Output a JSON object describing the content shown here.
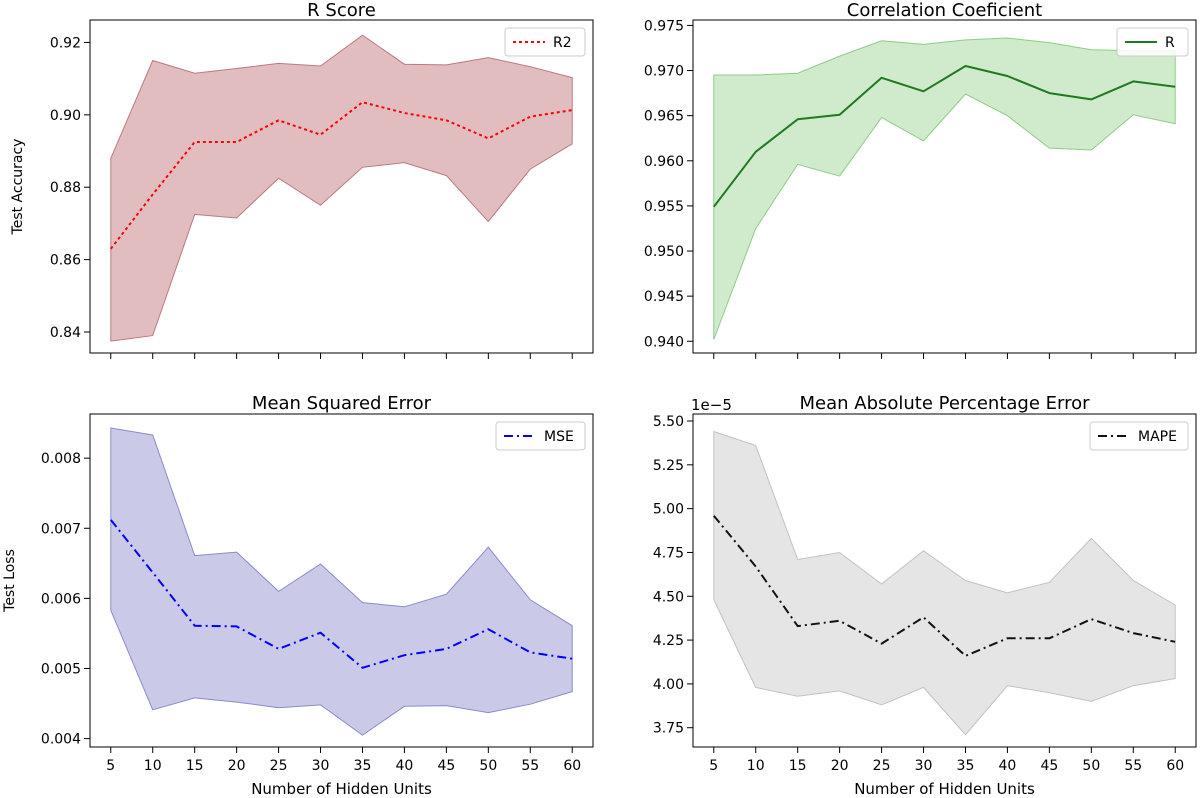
{
  "chart_data": [
    {
      "type": "line",
      "title": "R Score",
      "xlabel": "",
      "ylabel": "Test Accuracy",
      "x": [
        5,
        10,
        15,
        20,
        25,
        30,
        35,
        40,
        45,
        50,
        55,
        60
      ],
      "xticks": [
        "5",
        "10",
        "15",
        "20",
        "25",
        "30",
        "35",
        "40",
        "45",
        "50",
        "55",
        "60"
      ],
      "show_xtick_labels": false,
      "ylim": [
        0.8342,
        0.9262
      ],
      "yticks": [
        "0.84",
        "0.86",
        "0.88",
        "0.90",
        "0.92"
      ],
      "exponent_label": "",
      "legend_position": "top-right",
      "series": [
        {
          "name": "R2",
          "line_color": "#ff0000",
          "line_style": "dotted",
          "band_fill": "#c9868a",
          "band_stroke": "#b87b80",
          "values": [
            0.863,
            0.878,
            0.8925,
            0.8925,
            0.8985,
            0.8945,
            0.9035,
            0.9005,
            0.8985,
            0.8935,
            0.8995,
            0.9013
          ],
          "upper": [
            0.888,
            0.915,
            0.9115,
            0.9128,
            0.9142,
            0.9135,
            0.922,
            0.914,
            0.9138,
            0.9158,
            0.9133,
            0.9103
          ],
          "lower": [
            0.8375,
            0.839,
            0.8725,
            0.8715,
            0.8825,
            0.875,
            0.8855,
            0.8868,
            0.8832,
            0.8705,
            0.885,
            0.892
          ]
        }
      ]
    },
    {
      "type": "line",
      "title": "Correlation Coeficient",
      "xlabel": "",
      "ylabel": "",
      "x": [
        5,
        10,
        15,
        20,
        25,
        30,
        35,
        40,
        45,
        50,
        55,
        60
      ],
      "xticks": [
        "5",
        "10",
        "15",
        "20",
        "25",
        "30",
        "35",
        "40",
        "45",
        "50",
        "55",
        "60"
      ],
      "show_xtick_labels": false,
      "ylim": [
        0.9387,
        0.9756
      ],
      "yticks": [
        "0.940",
        "0.945",
        "0.950",
        "0.955",
        "0.960",
        "0.965",
        "0.970",
        "0.975"
      ],
      "exponent_label": "",
      "legend_position": "top-right",
      "series": [
        {
          "name": "R",
          "line_color": "#1f7a1f",
          "line_style": "solid",
          "band_fill": "#a8dba0",
          "band_stroke": "#8fcc88",
          "values": [
            0.9549,
            0.961,
            0.9646,
            0.9651,
            0.9692,
            0.9677,
            0.9705,
            0.9694,
            0.9675,
            0.9668,
            0.9688,
            0.9682
          ],
          "upper": [
            0.9695,
            0.9695,
            0.9697,
            0.9716,
            0.9733,
            0.9729,
            0.9734,
            0.9736,
            0.9731,
            0.9723,
            0.9722,
            0.9722
          ],
          "lower": [
            0.9402,
            0.9525,
            0.9596,
            0.9583,
            0.9648,
            0.9622,
            0.9674,
            0.965,
            0.9614,
            0.9612,
            0.9651,
            0.9641
          ]
        }
      ]
    },
    {
      "type": "line",
      "title": "Mean Squared Error",
      "xlabel": "Number of Hidden Units",
      "ylabel": "Test Loss",
      "x": [
        5,
        10,
        15,
        20,
        25,
        30,
        35,
        40,
        45,
        50,
        55,
        60
      ],
      "xticks": [
        "5",
        "10",
        "15",
        "20",
        "25",
        "30",
        "35",
        "40",
        "45",
        "50",
        "55",
        "60"
      ],
      "show_xtick_labels": true,
      "ylim": [
        0.00388,
        0.00863
      ],
      "yticks": [
        "0.004",
        "0.005",
        "0.006",
        "0.007",
        "0.008"
      ],
      "exponent_label": "",
      "legend_position": "top-right",
      "series": [
        {
          "name": "MSE",
          "line_color": "#0000ff",
          "line_style": "dashdot",
          "band_fill": "#9e9ed6",
          "band_stroke": "#8a8acb",
          "values": [
            0.00712,
            0.00637,
            0.00561,
            0.0056,
            0.00528,
            0.00551,
            0.00501,
            0.00519,
            0.00528,
            0.00556,
            0.00523,
            0.00514
          ],
          "upper": [
            0.00843,
            0.00833,
            0.00661,
            0.00666,
            0.0061,
            0.00649,
            0.00594,
            0.00588,
            0.00606,
            0.00673,
            0.00598,
            0.00561
          ],
          "lower": [
            0.00583,
            0.00441,
            0.00458,
            0.00452,
            0.00444,
            0.00448,
            0.00405,
            0.00446,
            0.00447,
            0.00437,
            0.00449,
            0.00467
          ]
        }
      ]
    },
    {
      "type": "line",
      "title": "Mean Absolute Percentage Error",
      "xlabel": "Number of Hidden Units",
      "ylabel": "",
      "x": [
        5,
        10,
        15,
        20,
        25,
        30,
        35,
        40,
        45,
        50,
        55,
        60
      ],
      "xticks": [
        "5",
        "10",
        "15",
        "20",
        "25",
        "30",
        "35",
        "40",
        "45",
        "50",
        "55",
        "60"
      ],
      "show_xtick_labels": true,
      "ylim": [
        3.64,
        5.54
      ],
      "yticks": [
        "3.75",
        "4.00",
        "4.25",
        "4.50",
        "4.75",
        "5.00",
        "5.25",
        "5.50"
      ],
      "exponent_label": "1e−5",
      "legend_position": "top-right",
      "series": [
        {
          "name": "MAPE",
          "line_color": "#111111",
          "line_style": "dashdot",
          "band_fill": "#cfcfcf",
          "band_stroke": "#c2c2c2",
          "values": [
            4.96,
            4.67,
            4.33,
            4.36,
            4.23,
            4.38,
            4.16,
            4.26,
            4.26,
            4.37,
            4.29,
            4.24
          ],
          "upper": [
            5.44,
            5.36,
            4.71,
            4.75,
            4.57,
            4.76,
            4.59,
            4.52,
            4.58,
            4.83,
            4.59,
            4.45
          ],
          "lower": [
            4.48,
            3.98,
            3.93,
            3.96,
            3.88,
            3.98,
            3.71,
            3.99,
            3.95,
            3.9,
            3.99,
            4.03
          ]
        }
      ]
    }
  ]
}
